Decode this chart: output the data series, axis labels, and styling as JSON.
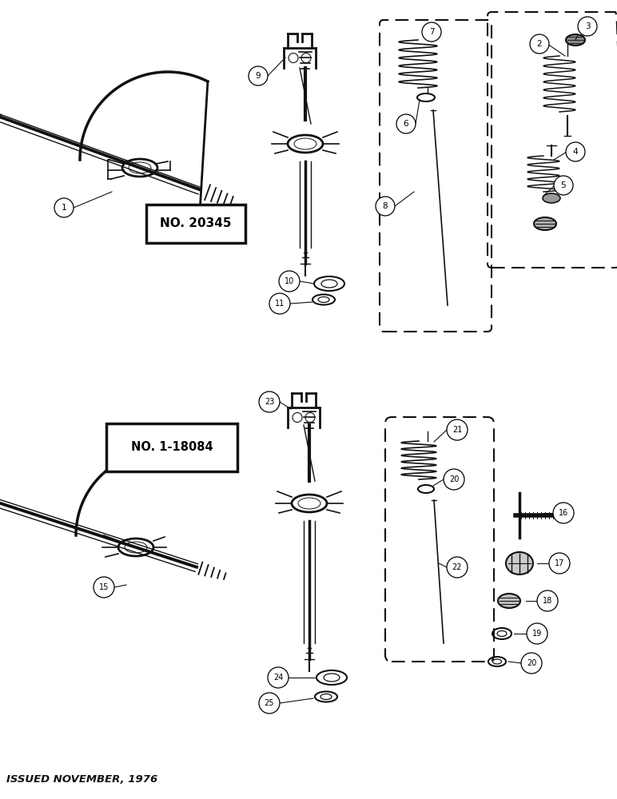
{
  "bg_color": "#ffffff",
  "fg_color": "#111111",
  "footer_text": "ISSUED NOVEMBER, 1976",
  "box1_text": "NO. 20345",
  "box2_text": "NO. 1-18084",
  "fig_w": 7.72,
  "fig_h": 10.0,
  "dpi": 100
}
